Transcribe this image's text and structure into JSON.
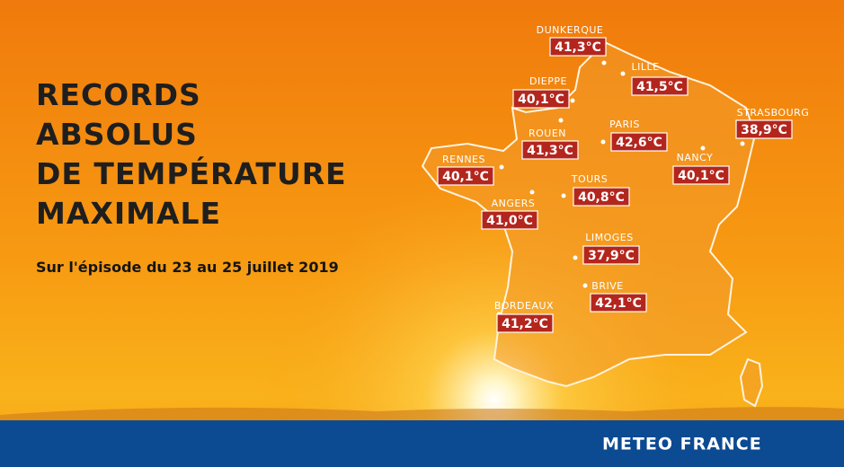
{
  "header": {
    "title_lines": [
      "RECORDS",
      "ABSOLUS",
      "DE TEMPÉRATURE",
      "MAXIMALE"
    ],
    "subtitle": "Sur l'épisode du 23 au 25 juillet 2019"
  },
  "cities": [
    {
      "name": "DUNKERQUE",
      "temp": "41,3°C"
    },
    {
      "name": "LILLE",
      "temp": "41,5°C"
    },
    {
      "name": "DIEPPE",
      "temp": "40,1°C"
    },
    {
      "name": "ROUEN",
      "temp": "41,3°C"
    },
    {
      "name": "PARIS",
      "temp": "42,6°C"
    },
    {
      "name": "STRASBOURG",
      "temp": "38,9°C"
    },
    {
      "name": "NANCY",
      "temp": "40,1°C"
    },
    {
      "name": "RENNES",
      "temp": "40,1°C"
    },
    {
      "name": "TOURS",
      "temp": "40,8°C"
    },
    {
      "name": "ANGERS",
      "temp": "41,0°C"
    },
    {
      "name": "LIMOGES",
      "temp": "37,9°C"
    },
    {
      "name": "BRIVE",
      "temp": "42,1°C"
    },
    {
      "name": "BORDEAUX",
      "temp": "41,2°C"
    }
  ],
  "footer": {
    "brand": "METEO FRANCE"
  }
}
